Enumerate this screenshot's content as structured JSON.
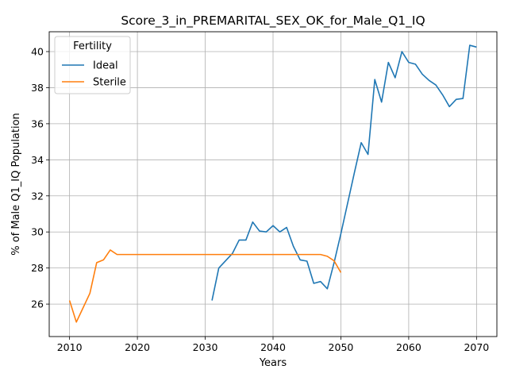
{
  "chart_data": {
    "type": "line",
    "title": "Score_3_in_PREMARITAL_SEX_OK_for_Male_Q1_IQ",
    "xlabel": "Years",
    "ylabel": "% of Male Q1_IQ Population",
    "xlim": [
      2007,
      2073
    ],
    "ylim": [
      24.2,
      41.1
    ],
    "xticks": [
      2010,
      2020,
      2030,
      2040,
      2050,
      2060,
      2070
    ],
    "yticks": [
      26,
      28,
      30,
      32,
      34,
      36,
      38,
      40
    ],
    "grid": true,
    "legend": {
      "title": "Fertility",
      "placement": "top-left"
    },
    "series": [
      {
        "name": "Ideal",
        "color": "#1f77b4",
        "x": [
          2031,
          2032,
          2033,
          2034,
          2035,
          2036,
          2037,
          2038,
          2039,
          2040,
          2041,
          2042,
          2043,
          2044,
          2045,
          2046,
          2047,
          2048,
          2049,
          2050,
          2051,
          2052,
          2053,
          2054,
          2055,
          2056,
          2057,
          2058,
          2059,
          2060,
          2061,
          2062,
          2063,
          2064,
          2065,
          2066,
          2067,
          2068,
          2069,
          2070
        ],
        "y": [
          26.2,
          28.0,
          28.4,
          28.8,
          29.55,
          29.55,
          30.55,
          30.05,
          30.0,
          30.35,
          30.0,
          30.25,
          29.2,
          28.45,
          28.38,
          27.15,
          27.25,
          26.85,
          28.3,
          29.9,
          31.6,
          33.3,
          34.95,
          34.3,
          38.45,
          37.2,
          39.4,
          38.55,
          40.0,
          39.4,
          39.3,
          38.75,
          38.4,
          38.15,
          37.6,
          36.95,
          37.35,
          37.4,
          40.35,
          40.25
        ]
      },
      {
        "name": "Sterile",
        "color": "#ff7f0e",
        "x": [
          2010,
          2011,
          2012,
          2013,
          2014,
          2015,
          2016,
          2017,
          2018,
          2020,
          2025,
          2030,
          2035,
          2040,
          2045,
          2046,
          2047,
          2048,
          2049,
          2050
        ],
        "y": [
          26.2,
          25.0,
          25.8,
          26.6,
          28.3,
          28.45,
          29.0,
          28.75,
          28.75,
          28.75,
          28.75,
          28.75,
          28.75,
          28.75,
          28.75,
          28.75,
          28.75,
          28.65,
          28.4,
          27.75
        ]
      }
    ]
  }
}
